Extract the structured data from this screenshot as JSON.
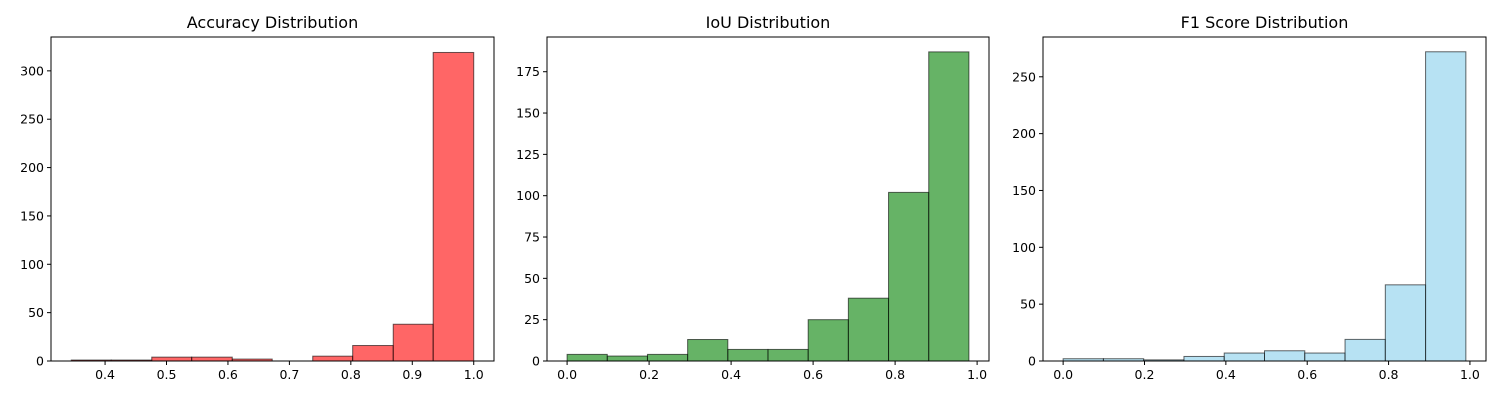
{
  "chart_data": [
    {
      "type": "bar",
      "title": "Accuracy Distribution",
      "xlabel": "",
      "ylabel": "",
      "color": "#ff0000",
      "bar_opacity": 0.6,
      "bins": [
        {
          "x0": 0.345,
          "x1": 0.41,
          "count": 1
        },
        {
          "x0": 0.41,
          "x1": 0.476,
          "count": 1
        },
        {
          "x0": 0.476,
          "x1": 0.541,
          "count": 4
        },
        {
          "x0": 0.541,
          "x1": 0.607,
          "count": 4
        },
        {
          "x0": 0.607,
          "x1": 0.672,
          "count": 2
        },
        {
          "x0": 0.672,
          "x1": 0.738,
          "count": 0
        },
        {
          "x0": 0.738,
          "x1": 0.803,
          "count": 5
        },
        {
          "x0": 0.803,
          "x1": 0.869,
          "count": 16
        },
        {
          "x0": 0.869,
          "x1": 0.934,
          "count": 38
        },
        {
          "x0": 0.934,
          "x1": 1.0,
          "count": 319
        }
      ],
      "xlim": [
        0.312,
        1.033
      ],
      "ylim": [
        0,
        335
      ],
      "xticks": [
        0.4,
        0.5,
        0.6,
        0.7,
        0.8,
        0.9,
        1.0
      ],
      "xtick_labels": [
        "0.4",
        "0.5",
        "0.6",
        "0.7",
        "0.8",
        "0.9",
        "1.0"
      ],
      "yticks": [
        0,
        50,
        100,
        150,
        200,
        250,
        300
      ],
      "ytick_labels": [
        "0",
        "50",
        "100",
        "150",
        "200",
        "250",
        "300"
      ]
    },
    {
      "type": "bar",
      "title": "IoU Distribution",
      "xlabel": "",
      "ylabel": "",
      "color": "#008000",
      "bar_opacity": 0.6,
      "bins": [
        {
          "x0": 0.0,
          "x1": 0.098,
          "count": 4
        },
        {
          "x0": 0.098,
          "x1": 0.196,
          "count": 3
        },
        {
          "x0": 0.196,
          "x1": 0.294,
          "count": 4
        },
        {
          "x0": 0.294,
          "x1": 0.392,
          "count": 13
        },
        {
          "x0": 0.392,
          "x1": 0.49,
          "count": 7
        },
        {
          "x0": 0.49,
          "x1": 0.588,
          "count": 7
        },
        {
          "x0": 0.588,
          "x1": 0.686,
          "count": 25
        },
        {
          "x0": 0.686,
          "x1": 0.784,
          "count": 38
        },
        {
          "x0": 0.784,
          "x1": 0.882,
          "count": 102
        },
        {
          "x0": 0.882,
          "x1": 0.98,
          "count": 187
        }
      ],
      "xlim": [
        -0.049,
        1.029
      ],
      "ylim": [
        0,
        196
      ],
      "xticks": [
        0.0,
        0.2,
        0.4,
        0.6,
        0.8,
        1.0
      ],
      "xtick_labels": [
        "0.0",
        "0.2",
        "0.4",
        "0.6",
        "0.8",
        "1.0"
      ],
      "yticks": [
        0,
        25,
        50,
        75,
        100,
        125,
        150,
        175
      ],
      "ytick_labels": [
        "0",
        "25",
        "50",
        "75",
        "100",
        "125",
        "150",
        "175"
      ]
    },
    {
      "type": "bar",
      "title": "F1 Score Distribution",
      "xlabel": "",
      "ylabel": "",
      "color": "#87ceeb",
      "bar_opacity": 0.6,
      "bins": [
        {
          "x0": 0.0,
          "x1": 0.099,
          "count": 2
        },
        {
          "x0": 0.099,
          "x1": 0.198,
          "count": 2
        },
        {
          "x0": 0.198,
          "x1": 0.297,
          "count": 1
        },
        {
          "x0": 0.297,
          "x1": 0.396,
          "count": 4
        },
        {
          "x0": 0.396,
          "x1": 0.495,
          "count": 7
        },
        {
          "x0": 0.495,
          "x1": 0.594,
          "count": 9
        },
        {
          "x0": 0.594,
          "x1": 0.693,
          "count": 7
        },
        {
          "x0": 0.693,
          "x1": 0.792,
          "count": 19
        },
        {
          "x0": 0.792,
          "x1": 0.891,
          "count": 67
        },
        {
          "x0": 0.891,
          "x1": 0.99,
          "count": 272
        }
      ],
      "xlim": [
        -0.0495,
        1.0395
      ],
      "ylim": [
        0,
        285
      ],
      "xticks": [
        0.0,
        0.2,
        0.4,
        0.6,
        0.8,
        1.0
      ],
      "xtick_labels": [
        "0.0",
        "0.2",
        "0.4",
        "0.6",
        "0.8",
        "1.0"
      ],
      "yticks": [
        0,
        50,
        100,
        150,
        200,
        250
      ],
      "ytick_labels": [
        "0",
        "50",
        "100",
        "150",
        "200",
        "250"
      ]
    }
  ]
}
